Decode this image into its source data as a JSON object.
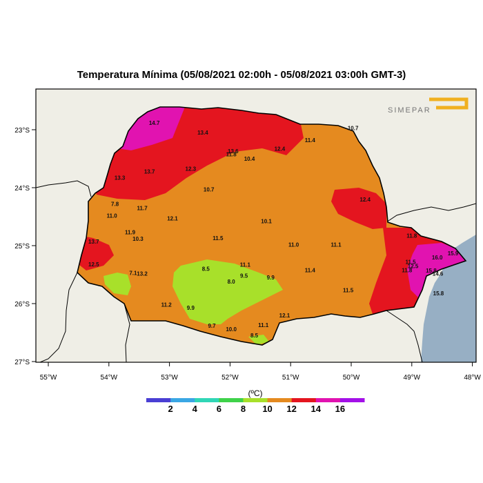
{
  "title": "Temperatura Mínima (05/08/2021 02:00h - 05/08/2021 03:00h GMT-3)",
  "logo_text": "SIMEPAR",
  "colors": {
    "ocean": "#97afc4",
    "land": "#efeee6",
    "border": "#000000"
  },
  "legend": {
    "unit": "(ºC)",
    "colors": [
      "#4a3fd4",
      "#3aa7e4",
      "#30d6b6",
      "#3fd24a",
      "#a8e02a",
      "#e58a1f",
      "#e4151f",
      "#e113b0",
      "#a310e8"
    ],
    "tick_labels": [
      "2",
      "4",
      "6",
      "8",
      "10",
      "12",
      "14",
      "16"
    ]
  },
  "axes": {
    "lon_ticks": [
      {
        "value": -55,
        "label": "55°W"
      },
      {
        "value": -54,
        "label": "54°W"
      },
      {
        "value": -53,
        "label": "53°W"
      },
      {
        "value": -52,
        "label": "52°W"
      },
      {
        "value": -51,
        "label": "51°W"
      },
      {
        "value": -50,
        "label": "50°W"
      },
      {
        "value": -49,
        "label": "49°W"
      },
      {
        "value": -48,
        "label": "48°W"
      }
    ],
    "lat_ticks": [
      {
        "value": -23,
        "label": "23°S"
      },
      {
        "value": -24,
        "label": "24°S"
      },
      {
        "value": -25,
        "label": "25°S"
      },
      {
        "value": -26,
        "label": "26°S"
      },
      {
        "value": -27,
        "label": "27°S"
      }
    ]
  },
  "stations": [
    {
      "label": "14.7",
      "lon": -53.25,
      "lat": -22.88
    },
    {
      "label": "13.4",
      "lon": -52.45,
      "lat": -23.05
    },
    {
      "label": "13.6",
      "lon": -51.95,
      "lat": -23.37
    },
    {
      "label": "11.8",
      "lon": -51.98,
      "lat": -23.42
    },
    {
      "label": "12.4",
      "lon": -51.18,
      "lat": -23.33
    },
    {
      "label": "11.4",
      "lon": -50.68,
      "lat": -23.18
    },
    {
      "label": "10.7",
      "lon": -49.97,
      "lat": -22.97
    },
    {
      "label": "10.4",
      "lon": -51.68,
      "lat": -23.5
    },
    {
      "label": "13.7",
      "lon": -53.33,
      "lat": -23.72
    },
    {
      "label": "13.3",
      "lon": -53.82,
      "lat": -23.83
    },
    {
      "label": "12.3",
      "lon": -52.65,
      "lat": -23.67
    },
    {
      "label": "10.7",
      "lon": -52.35,
      "lat": -24.03
    },
    {
      "label": "12.4",
      "lon": -49.77,
      "lat": -24.2
    },
    {
      "label": "7.8",
      "lon": -53.9,
      "lat": -24.28
    },
    {
      "label": "11.7",
      "lon": -53.45,
      "lat": -24.35
    },
    {
      "label": "11.0",
      "lon": -53.95,
      "lat": -24.48
    },
    {
      "label": "12.1",
      "lon": -52.95,
      "lat": -24.53
    },
    {
      "label": "10.1",
      "lon": -51.4,
      "lat": -24.58
    },
    {
      "label": "11.9",
      "lon": -53.65,
      "lat": -24.77
    },
    {
      "label": "10.3",
      "lon": -53.52,
      "lat": -24.88
    },
    {
      "label": "11.5",
      "lon": -52.2,
      "lat": -24.87
    },
    {
      "label": "11.8",
      "lon": -49.0,
      "lat": -24.83
    },
    {
      "label": "13.7",
      "lon": -54.25,
      "lat": -24.93
    },
    {
      "label": "11.0",
      "lon": -50.95,
      "lat": -24.98
    },
    {
      "label": "11.1",
      "lon": -50.25,
      "lat": -24.98
    },
    {
      "label": "16.0",
      "lon": -48.58,
      "lat": -25.2
    },
    {
      "label": "15.9",
      "lon": -48.32,
      "lat": -25.13
    },
    {
      "label": "11.5",
      "lon": -49.02,
      "lat": -25.28
    },
    {
      "label": "12.5",
      "lon": -48.98,
      "lat": -25.35
    },
    {
      "label": "11.8",
      "lon": -49.08,
      "lat": -25.42
    },
    {
      "label": "15.8",
      "lon": -48.68,
      "lat": -25.43
    },
    {
      "label": "14.6",
      "lon": -48.57,
      "lat": -25.48
    },
    {
      "label": "12.5",
      "lon": -54.25,
      "lat": -25.32
    },
    {
      "label": "11.1",
      "lon": -51.75,
      "lat": -25.33
    },
    {
      "label": "8.5",
      "lon": -52.4,
      "lat": -25.4
    },
    {
      "label": "11.4",
      "lon": -50.68,
      "lat": -25.42
    },
    {
      "label": "7.1",
      "lon": -53.6,
      "lat": -25.47
    },
    {
      "label": "13.2",
      "lon": -53.45,
      "lat": -25.48
    },
    {
      "label": "9.5",
      "lon": -51.77,
      "lat": -25.52
    },
    {
      "label": "9.9",
      "lon": -51.33,
      "lat": -25.55
    },
    {
      "label": "8.0",
      "lon": -51.98,
      "lat": -25.62
    },
    {
      "label": "11.5",
      "lon": -50.05,
      "lat": -25.77
    },
    {
      "label": "15.8",
      "lon": -48.56,
      "lat": -25.82
    },
    {
      "label": "11.2",
      "lon": -53.05,
      "lat": -26.02
    },
    {
      "label": "9.9",
      "lon": -52.65,
      "lat": -26.07
    },
    {
      "label": "12.1",
      "lon": -51.1,
      "lat": -26.2
    },
    {
      "label": "11.1",
      "lon": -51.45,
      "lat": -26.37
    },
    {
      "label": "9.7",
      "lon": -52.3,
      "lat": -26.38
    },
    {
      "label": "10.0",
      "lon": -51.98,
      "lat": -26.44
    },
    {
      "label": "8.5",
      "lon": -51.6,
      "lat": -26.55
    }
  ]
}
